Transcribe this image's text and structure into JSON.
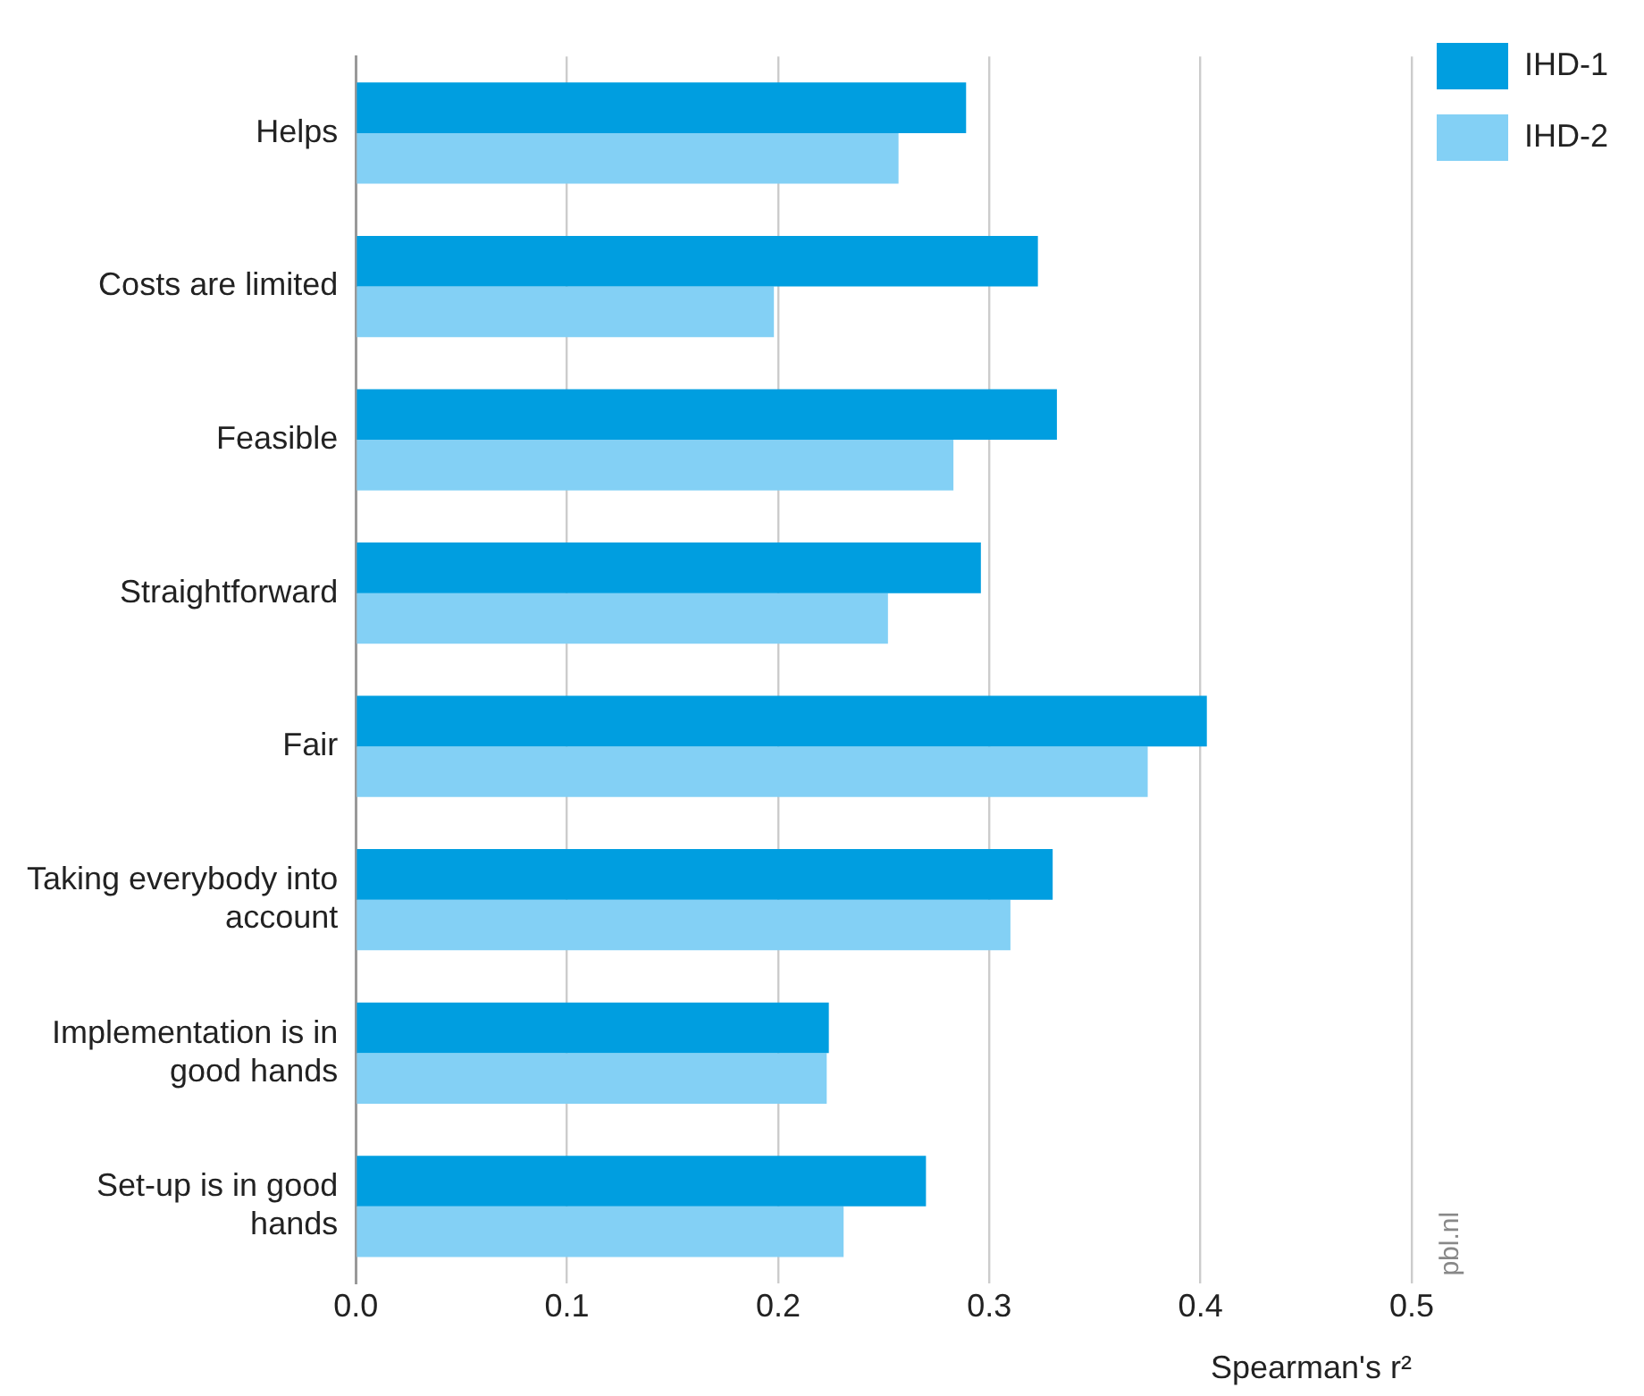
{
  "chart_data": {
    "type": "bar",
    "orientation": "horizontal",
    "categories": [
      "Helps",
      "Costs are limited",
      "Feasible",
      "Straightforward",
      "Fair",
      "Taking everybody into account",
      "Implementation is in good hands",
      "Set-up is in good hands"
    ],
    "series": [
      {
        "name": "IHD-1",
        "color": "#009ee0",
        "values": [
          0.289,
          0.323,
          0.332,
          0.296,
          0.403,
          0.33,
          0.224,
          0.27
        ]
      },
      {
        "name": "IHD-2",
        "color": "#83d0f5",
        "values": [
          0.257,
          0.198,
          0.283,
          0.252,
          0.375,
          0.31,
          0.223,
          0.231
        ]
      }
    ],
    "xlim": [
      0,
      0.5
    ],
    "xticks": [
      {
        "value": 0,
        "label": "0.0"
      },
      0.1,
      0.2,
      0.3,
      0.4,
      0.5
    ],
    "xlabel": "Spearman's r²",
    "grid": "x",
    "legend": "right",
    "annotations": [
      "pbl.nl"
    ]
  }
}
